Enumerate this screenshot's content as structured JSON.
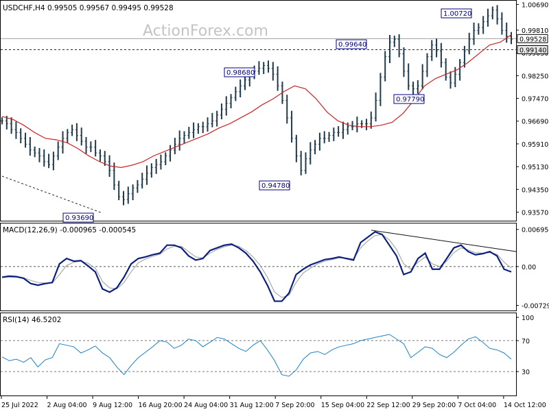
{
  "chart_data": {
    "type": "line",
    "symbol_header": "USDCHF,H4  0.99505 0.99567 0.99495 0.99528",
    "watermark": "ActionForex.com",
    "x_tick_labels": [
      "25 Jul 2022",
      "2 Aug 04:00",
      "9 Aug 12:00",
      "16 Aug 20:00",
      "24 Aug 04:00",
      "31 Aug 12:00",
      "7 Sep 20:00",
      "15 Sep 04:00",
      "22 Sep 12:00",
      "29 Sep 20:00",
      "7 Oct 04:00",
      "14 Oct 12:00"
    ],
    "panels": [
      {
        "name": "price",
        "ylim": [
          0.9337,
          1.0075
        ],
        "y_tick_labels": [
          1.0069,
          0.9981,
          0.9903,
          0.9825,
          0.9747,
          0.9669,
          0.9591,
          0.9513,
          0.9435,
          0.9357
        ],
        "series": [
          {
            "kind": "ohlc_bars",
            "color": "#1f3a4a",
            "values": [
              0.967,
              0.966,
              0.964,
              0.963,
              0.961,
              0.959,
              0.957,
              0.956,
              0.955,
              0.953,
              0.952,
              0.955,
              0.958,
              0.961,
              0.963,
              0.964,
              0.962,
              0.96,
              0.958,
              0.958,
              0.956,
              0.955,
              0.953,
              0.95,
              0.945,
              0.941,
              0.94,
              0.942,
              0.944,
              0.945,
              0.947,
              0.949,
              0.951,
              0.952,
              0.953,
              0.955,
              0.957,
              0.959,
              0.961,
              0.962,
              0.963,
              0.964,
              0.965,
              0.965,
              0.966,
              0.967,
              0.969,
              0.971,
              0.973,
              0.975,
              0.977,
              0.979,
              0.981,
              0.983,
              0.984,
              0.985,
              0.986,
              0.985,
              0.983,
              0.979,
              0.974,
              0.968,
              0.961,
              0.955,
              0.95,
              0.954,
              0.957,
              0.959,
              0.961,
              0.961,
              0.962,
              0.963,
              0.963,
              0.964,
              0.965,
              0.965,
              0.966,
              0.966,
              0.966,
              0.968,
              0.974,
              0.982,
              0.989,
              0.994,
              0.995,
              0.99,
              0.984,
              0.979,
              0.978,
              0.979,
              0.984,
              0.989,
              0.993,
              0.991,
              0.987,
              0.982,
              0.98,
              0.983,
              0.987,
              0.991,
              0.995,
              0.998,
              0.999,
              1.001,
              1.003,
              1.005,
              1.002,
              0.998,
              0.996,
              0.995
            ]
          },
          {
            "kind": "moving_average",
            "color": "#cc2222",
            "values": [
              0.9685,
              0.9675,
              0.9655,
              0.963,
              0.961,
              0.9605,
              0.9595,
              0.9575,
              0.955,
              0.953,
              0.9515,
              0.951,
              0.9518,
              0.953,
              0.955,
              0.9565,
              0.958,
              0.9595,
              0.961,
              0.9625,
              0.9645,
              0.966,
              0.968,
              0.97,
              0.9725,
              0.9745,
              0.977,
              0.979,
              0.978,
              0.9745,
              0.97,
              0.967,
              0.9655,
              0.965,
              0.965,
              0.9655,
              0.9665,
              0.9695,
              0.974,
              0.979,
              0.9815,
              0.983,
              0.9845,
              0.987,
              0.99,
              0.993,
              0.994,
              0.9965
            ]
          }
        ],
        "annotations": [
          {
            "text": "0.93690",
            "value": 0.9369
          },
          {
            "text": "0.98680",
            "value": 0.9868
          },
          {
            "text": "0.94780",
            "value": 0.9478
          },
          {
            "text": "0.99640",
            "value": 0.9964
          },
          {
            "text": "0.97790",
            "value": 0.9779
          },
          {
            "text": "1.00720",
            "value": 1.0072
          }
        ],
        "horizontal_lines": [
          {
            "value": 0.9952,
            "style": "solid",
            "label": "0.99528"
          },
          {
            "value": 0.9914,
            "style": "dashed",
            "label": "0.99140"
          }
        ]
      },
      {
        "name": "macd",
        "title": "MACD(12,26,9) -0.000965 -0.000545",
        "ylim": [
          -0.0076,
          0.0073
        ],
        "y_tick_labels": [
          "0.006954",
          "0.00",
          "-0.007294"
        ],
        "series": [
          {
            "kind": "macd",
            "color": "#0a1f80",
            "values": [
              -0.002,
              -0.0018,
              -0.0019,
              -0.0022,
              -0.0032,
              -0.0035,
              -0.0032,
              -0.003,
              0.0005,
              0.0015,
              0.001,
              0.0011,
              0.0001,
              -0.001,
              -0.0042,
              -0.0048,
              -0.004,
              -0.002,
              0.0005,
              0.0015,
              0.0018,
              0.0022,
              0.0025,
              0.004,
              0.004,
              0.0035,
              0.002,
              0.0012,
              0.0015,
              0.003,
              0.0035,
              0.004,
              0.0042,
              0.0035,
              0.0025,
              0.001,
              -0.001,
              -0.0035,
              -0.0065,
              -0.0065,
              -0.005,
              -0.0015,
              -0.0005,
              0.0003,
              0.0008,
              0.0013,
              0.0015,
              0.0018,
              0.0015,
              0.0012,
              0.0045,
              0.0055,
              0.0065,
              0.006,
              0.004,
              0.002,
              -0.0015,
              -0.001,
              0.0015,
              0.0025,
              -0.0005,
              -0.0005,
              0.0015,
              0.0035,
              0.004,
              0.0028,
              0.0022,
              0.0024,
              0.0028,
              0.002,
              -0.0005,
              -0.001
            ]
          },
          {
            "kind": "signal",
            "color": "#999999",
            "values": [
              -0.0021,
              -0.002,
              -0.002,
              -0.0021,
              -0.0026,
              -0.003,
              -0.0031,
              -0.0031,
              -0.0015,
              0.0002,
              0.0008,
              0.001,
              0.0006,
              -0.0003,
              -0.0028,
              -0.004,
              -0.0042,
              -0.003,
              -0.001,
              0.0007,
              0.0014,
              0.0019,
              0.0023,
              0.0033,
              0.0038,
              0.0038,
              0.0028,
              0.0018,
              0.0016,
              0.0025,
              0.0032,
              0.0037,
              0.004,
              0.0038,
              0.003,
              0.0018,
              0.0002,
              -0.002,
              -0.0048,
              -0.0058,
              -0.0054,
              -0.003,
              -0.0012,
              -0.0003,
              0.0005,
              0.001,
              0.0013,
              0.0016,
              0.0016,
              0.0014,
              0.0035,
              0.0048,
              0.0058,
              0.006,
              0.005,
              0.0032,
              0.0005,
              -0.0005,
              0.0008,
              0.0018,
              0.0005,
              0.0,
              0.001,
              0.0026,
              0.0035,
              0.0031,
              0.0026,
              0.0025,
              0.0026,
              0.0023,
              0.0008,
              -0.0003
            ]
          }
        ],
        "trendline": {
          "from": [
            0.725,
            0.0068
          ],
          "to": [
            0.985,
            0.0028
          ]
        },
        "zero_line": 0.0
      },
      {
        "name": "rsi",
        "title": "RSI(14) 46.5202",
        "ylim": [
          0,
          100
        ],
        "y_tick_labels": [
          100,
          70,
          30
        ],
        "levels": [
          70,
          30
        ],
        "series": [
          {
            "kind": "rsi",
            "color": "#1a7fc8",
            "values": [
              49,
              44,
              46,
              42,
              48,
              36,
              45,
              48,
              66,
              64,
              62,
              54,
              58,
              63,
              54,
              48,
              36,
              26,
              38,
              48,
              55,
              62,
              70,
              68,
              60,
              64,
              72,
              70,
              62,
              68,
              74,
              72,
              66,
              60,
              56,
              64,
              70,
              58,
              44,
              26,
              24,
              32,
              46,
              54,
              56,
              52,
              58,
              62,
              64,
              66,
              70,
              72,
              74,
              76,
              78,
              72,
              66,
              48,
              55,
              62,
              60,
              52,
              48,
              55,
              64,
              72,
              75,
              68,
              60,
              58,
              54,
              46
            ]
          }
        ]
      }
    ]
  }
}
